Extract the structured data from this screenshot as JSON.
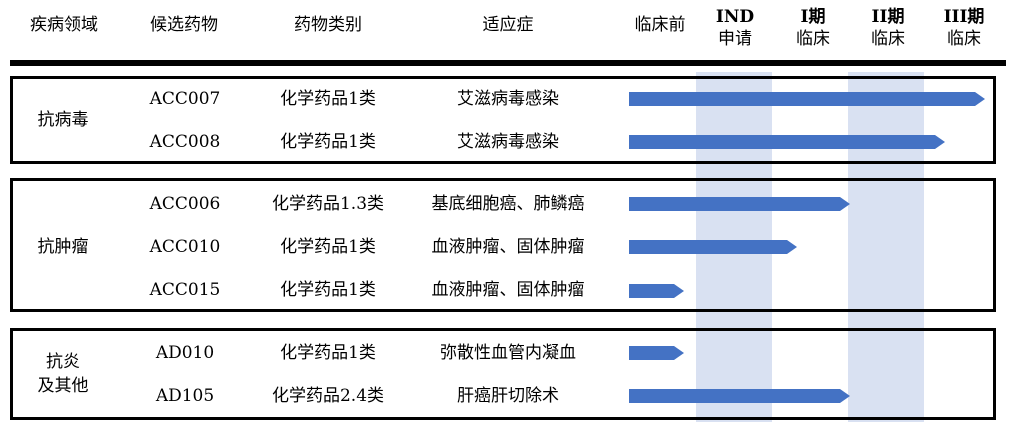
{
  "headers": {
    "area": "疾病领域",
    "candidate": "候选药物",
    "category": "药物类别",
    "indication": "适应症",
    "preclinical": "临床前",
    "ind_line1": "IND",
    "ind_line2": "申请",
    "p1_line1": "I期",
    "p1_line2": "临床",
    "p2_line1": "II期",
    "p2_line2": "临床",
    "p3_line1": "III期",
    "p3_line2": "临床"
  },
  "colors": {
    "bar": "#4472C4",
    "band": "#D9E1F2",
    "border": "#000000"
  },
  "groups": [
    {
      "area": "抗病毒",
      "rows": [
        {
          "candidate": "ACC007",
          "category": "化学药品1类",
          "indication": "艾滋病毒感染",
          "stage": "III期临床"
        },
        {
          "candidate": "ACC008",
          "category": "化学药品1类",
          "indication": "艾滋病毒感染",
          "stage": "III期临床"
        }
      ]
    },
    {
      "area": "抗肿瘤",
      "rows": [
        {
          "candidate": "ACC006",
          "category": "化学药品1.3类",
          "indication": "基底细胞癌、肺鳞癌",
          "stage": "II期临床"
        },
        {
          "candidate": "ACC010",
          "category": "化学药品1类",
          "indication": "血液肿瘤、固体肿瘤",
          "stage": "I期临床"
        },
        {
          "candidate": "ACC015",
          "category": "化学药品1类",
          "indication": "血液肿瘤、固体肿瘤",
          "stage": "临床前"
        }
      ]
    },
    {
      "area_line1": "抗炎",
      "area_line2": "及其他",
      "rows": [
        {
          "candidate": "AD010",
          "category": "化学药品1类",
          "indication": "弥散性血管内凝血",
          "stage": "临床前"
        },
        {
          "candidate": "AD105",
          "category": "化学药品2.4类",
          "indication": "肝癌肝切除术",
          "stage": "II期临床"
        }
      ]
    }
  ]
}
